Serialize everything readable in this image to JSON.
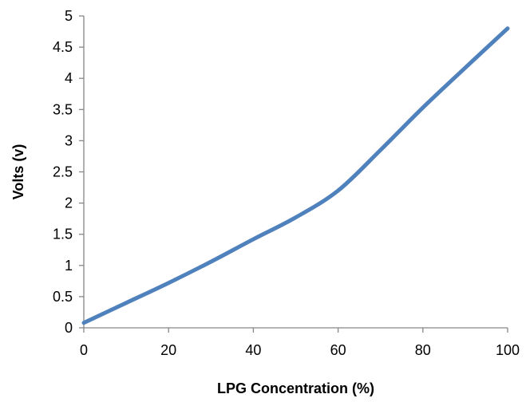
{
  "chart_data": {
    "type": "line",
    "title": "",
    "xlabel": "LPG Concentration (%)",
    "ylabel": "Volts (v)",
    "xlim": [
      0,
      100
    ],
    "ylim": [
      0,
      5
    ],
    "xticks": [
      0,
      20,
      40,
      60,
      80,
      100
    ],
    "yticks": [
      0,
      0.5,
      1,
      1.5,
      2,
      2.5,
      3,
      3.5,
      4,
      4.5,
      5
    ],
    "xtick_labels": [
      "0",
      "20",
      "40",
      "60",
      "80",
      "100"
    ],
    "ytick_labels": [
      "0",
      "0.5",
      "1",
      "1.5",
      "2",
      "2.5",
      "3",
      "3.5",
      "4",
      "4.5",
      "5"
    ],
    "grid": false,
    "legend": "none",
    "series": [
      {
        "color": "#4f81bd",
        "x": [
          0,
          10,
          20,
          30,
          40,
          50,
          60,
          70,
          80,
          90,
          100
        ],
        "y": [
          0.08,
          0.4,
          0.72,
          1.06,
          1.42,
          1.77,
          2.2,
          2.85,
          3.53,
          4.17,
          4.8
        ]
      }
    ]
  }
}
